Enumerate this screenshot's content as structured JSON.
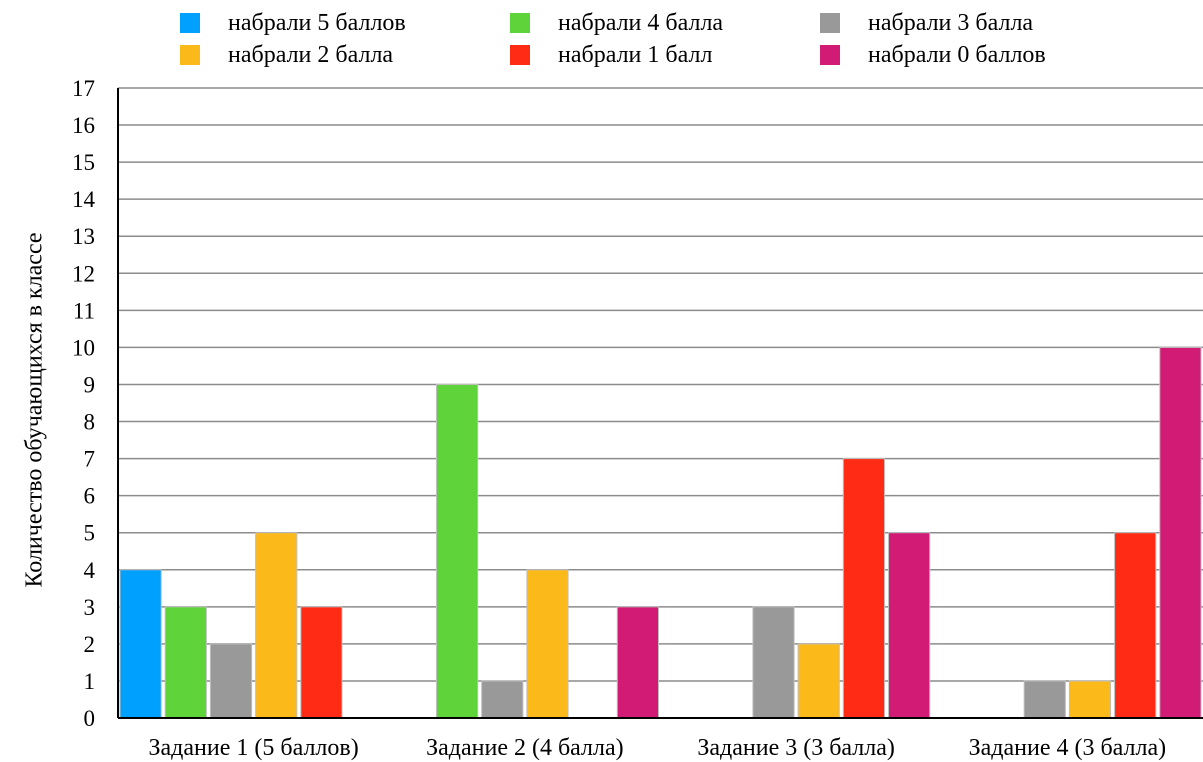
{
  "chart_data": {
    "type": "bar",
    "ylabel": "Количество обучающихся в классе",
    "xlabel": "",
    "ylim": [
      0,
      17
    ],
    "yticks": [
      0,
      1,
      2,
      3,
      4,
      5,
      6,
      7,
      8,
      9,
      10,
      11,
      12,
      13,
      14,
      15,
      16,
      17
    ],
    "grid": true,
    "legend_position": "top",
    "categories": [
      "Задание 1 (5 баллов)",
      "Задание 2 (4 балла)",
      "Задание 3 (3 балла)",
      "Задание 4 (3 балла)"
    ],
    "series": [
      {
        "name": "набрали 5 баллов",
        "color": "#00A0FF",
        "values": [
          4,
          0,
          0,
          0
        ]
      },
      {
        "name": "набрали 4 балла",
        "color": "#5FD33A",
        "values": [
          3,
          9,
          0,
          0
        ]
      },
      {
        "name": "набрали 3 балла",
        "color": "#999999",
        "values": [
          2,
          1,
          3,
          1
        ]
      },
      {
        "name": "набрали 2 балла",
        "color": "#FBB91A",
        "values": [
          5,
          4,
          2,
          1
        ]
      },
      {
        "name": "набрали 1 балл",
        "color": "#FF2B14",
        "values": [
          3,
          0,
          7,
          5
        ]
      },
      {
        "name": "набрали 0 баллов",
        "color": "#D21B74",
        "values": [
          0,
          3,
          5,
          10
        ]
      }
    ]
  }
}
